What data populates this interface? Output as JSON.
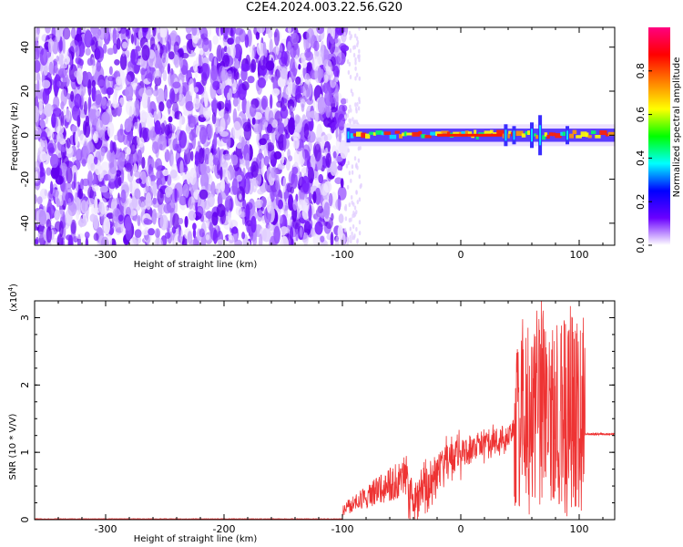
{
  "title": "C2E4.2024.003.22.56.G20",
  "chart_data": [
    {
      "type": "heatmap",
      "xlabel": "Height of straight line (km)",
      "ylabel": "Frequency (Hz)",
      "xlim": [
        -360,
        130
      ],
      "ylim": [
        -50,
        49
      ],
      "xticks": [
        -300,
        -200,
        -100,
        0,
        100
      ],
      "yticks": [
        -40,
        -20,
        0,
        20,
        40
      ],
      "noise_region_x": [
        -360,
        -98
      ],
      "signal_band_hz": [
        -3,
        3
      ],
      "colorbar": {
        "label": "Normalized spectral amplitude",
        "range": [
          0,
          1
        ],
        "ticks": [
          0.0,
          0.2,
          0.4,
          0.6,
          0.8
        ],
        "colors": [
          "#ffffff",
          "#6a00ff",
          "#0000ff",
          "#00ffff",
          "#00ff00",
          "#ffff00",
          "#ff8000",
          "#ff0000",
          "#ff0080"
        ]
      }
    },
    {
      "type": "line",
      "xlabel": "Height of straight line (km)",
      "ylabel": "SNR (10 * V/V)",
      "yscale_label": "(x10^4)",
      "scale_text": "(x10",
      "scale_exp": "4",
      "scale_close": ")",
      "xlim": [
        -360,
        130
      ],
      "ylim": [
        0,
        3.25
      ],
      "xticks": [
        -300,
        -200,
        -100,
        0,
        100
      ],
      "yticks": [
        0,
        1,
        2,
        3
      ],
      "color": "#ee3333",
      "segments": [
        {
          "x_range": [
            -360,
            -100
          ],
          "baseline": 0.01,
          "noise": 0.01
        },
        {
          "x_range": [
            -100,
            -45
          ],
          "baseline": 0.22,
          "noise": 0.45
        },
        {
          "x_range": [
            -45,
            0
          ],
          "baseline": 0.75,
          "noise": 0.55
        },
        {
          "x_range": [
            0,
            45
          ],
          "baseline": 1.2,
          "noise": 0.35
        },
        {
          "x_range": [
            45,
            105
          ],
          "baseline": 1.3,
          "noise": 1.9
        },
        {
          "x_range": [
            105,
            130
          ],
          "baseline": 1.27,
          "noise": 0.03
        }
      ],
      "peak": {
        "x": 68,
        "y": 3.25
      }
    }
  ]
}
